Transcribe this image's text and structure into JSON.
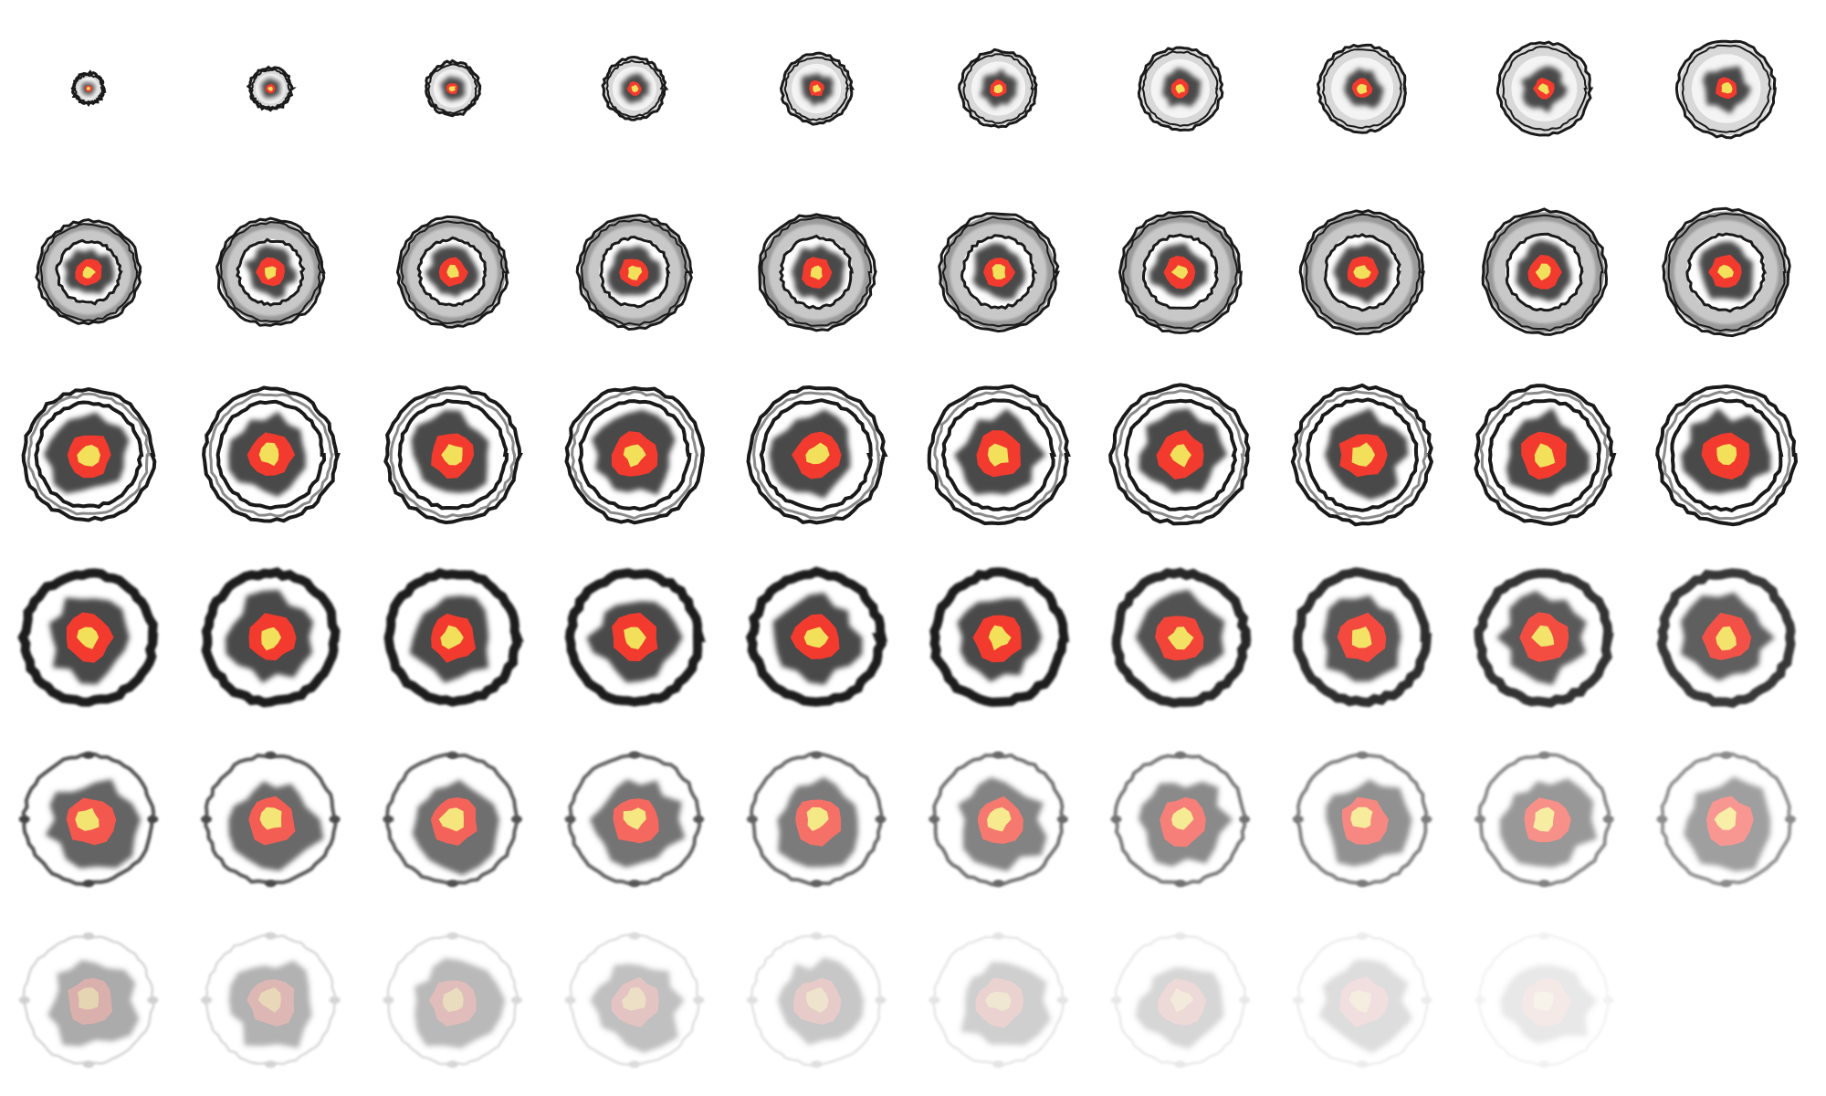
{
  "sprite_sheet": {
    "description_visible_text": "",
    "background_color": "#ffffff",
    "palette": {
      "ring_dark": "#1a1a1a",
      "ring_mid": "#8a8a8a",
      "smoke_gray": "#4a4a4a",
      "fire_red": "#f23a2e",
      "core_yellow": "#f2e05a"
    },
    "rows": [
      {
        "row": 1,
        "frames": [
          {
            "scale": 0.19,
            "opacity": 1.0,
            "style": "early"
          },
          {
            "scale": 0.26,
            "opacity": 1.0,
            "style": "early"
          },
          {
            "scale": 0.33,
            "opacity": 1.0,
            "style": "early"
          },
          {
            "scale": 0.38,
            "opacity": 1.0,
            "style": "early"
          },
          {
            "scale": 0.43,
            "opacity": 1.0,
            "style": "early"
          },
          {
            "scale": 0.47,
            "opacity": 1.0,
            "style": "early"
          },
          {
            "scale": 0.51,
            "opacity": 1.0,
            "style": "early"
          },
          {
            "scale": 0.54,
            "opacity": 1.0,
            "style": "early"
          },
          {
            "scale": 0.57,
            "opacity": 1.0,
            "style": "early"
          },
          {
            "scale": 0.6,
            "opacity": 1.0,
            "style": "early"
          }
        ]
      },
      {
        "row": 2,
        "frames": [
          {
            "scale": 0.63,
            "opacity": 1.0,
            "style": "ring"
          },
          {
            "scale": 0.65,
            "opacity": 1.0,
            "style": "ring"
          },
          {
            "scale": 0.67,
            "opacity": 1.0,
            "style": "ring"
          },
          {
            "scale": 0.69,
            "opacity": 1.0,
            "style": "ring"
          },
          {
            "scale": 0.71,
            "opacity": 1.0,
            "style": "ring"
          },
          {
            "scale": 0.72,
            "opacity": 1.0,
            "style": "ring"
          },
          {
            "scale": 0.74,
            "opacity": 1.0,
            "style": "ring"
          },
          {
            "scale": 0.75,
            "opacity": 1.0,
            "style": "ring"
          },
          {
            "scale": 0.76,
            "opacity": 1.0,
            "style": "ring"
          },
          {
            "scale": 0.77,
            "opacity": 1.0,
            "style": "ring"
          }
        ]
      },
      {
        "row": 3,
        "frames": [
          {
            "scale": 0.79,
            "opacity": 1.0,
            "style": "wide"
          },
          {
            "scale": 0.8,
            "opacity": 1.0,
            "style": "wide"
          },
          {
            "scale": 0.81,
            "opacity": 1.0,
            "style": "wide"
          },
          {
            "scale": 0.82,
            "opacity": 1.0,
            "style": "wide"
          },
          {
            "scale": 0.82,
            "opacity": 1.0,
            "style": "wide"
          },
          {
            "scale": 0.83,
            "opacity": 1.0,
            "style": "wide"
          },
          {
            "scale": 0.83,
            "opacity": 1.0,
            "style": "wide"
          },
          {
            "scale": 0.83,
            "opacity": 1.0,
            "style": "wide"
          },
          {
            "scale": 0.83,
            "opacity": 1.0,
            "style": "wide"
          },
          {
            "scale": 0.83,
            "opacity": 1.0,
            "style": "wide"
          }
        ]
      },
      {
        "row": 4,
        "frames": [
          {
            "scale": 0.84,
            "opacity": 1.0,
            "style": "thick"
          },
          {
            "scale": 0.84,
            "opacity": 1.0,
            "style": "thick"
          },
          {
            "scale": 0.84,
            "opacity": 1.0,
            "style": "thick"
          },
          {
            "scale": 0.84,
            "opacity": 1.0,
            "style": "thick"
          },
          {
            "scale": 0.84,
            "opacity": 1.0,
            "style": "thick"
          },
          {
            "scale": 0.84,
            "opacity": 1.0,
            "style": "thick"
          },
          {
            "scale": 0.84,
            "opacity": 0.95,
            "style": "thick"
          },
          {
            "scale": 0.84,
            "opacity": 0.92,
            "style": "thick"
          },
          {
            "scale": 0.84,
            "opacity": 0.9,
            "style": "thick"
          },
          {
            "scale": 0.84,
            "opacity": 0.88,
            "style": "thick"
          }
        ]
      },
      {
        "row": 5,
        "frames": [
          {
            "scale": 0.84,
            "opacity": 0.85,
            "style": "fade"
          },
          {
            "scale": 0.84,
            "opacity": 0.82,
            "style": "fade"
          },
          {
            "scale": 0.84,
            "opacity": 0.79,
            "style": "fade"
          },
          {
            "scale": 0.84,
            "opacity": 0.76,
            "style": "fade"
          },
          {
            "scale": 0.84,
            "opacity": 0.72,
            "style": "fade"
          },
          {
            "scale": 0.84,
            "opacity": 0.68,
            "style": "fade"
          },
          {
            "scale": 0.84,
            "opacity": 0.64,
            "style": "fade"
          },
          {
            "scale": 0.84,
            "opacity": 0.6,
            "style": "fade"
          },
          {
            "scale": 0.84,
            "opacity": 0.56,
            "style": "fade"
          },
          {
            "scale": 0.84,
            "opacity": 0.52,
            "style": "fade"
          }
        ]
      },
      {
        "row": 6,
        "frames": [
          {
            "scale": 0.84,
            "opacity": 0.46,
            "style": "ghost"
          },
          {
            "scale": 0.84,
            "opacity": 0.42,
            "style": "ghost"
          },
          {
            "scale": 0.84,
            "opacity": 0.38,
            "style": "ghost"
          },
          {
            "scale": 0.84,
            "opacity": 0.34,
            "style": "ghost"
          },
          {
            "scale": 0.84,
            "opacity": 0.3,
            "style": "ghost"
          },
          {
            "scale": 0.84,
            "opacity": 0.26,
            "style": "ghost"
          },
          {
            "scale": 0.84,
            "opacity": 0.22,
            "style": "ghost"
          },
          {
            "scale": 0.84,
            "opacity": 0.18,
            "style": "ghost"
          },
          {
            "scale": 0.84,
            "opacity": 0.12,
            "style": "ghost"
          }
        ]
      }
    ]
  }
}
